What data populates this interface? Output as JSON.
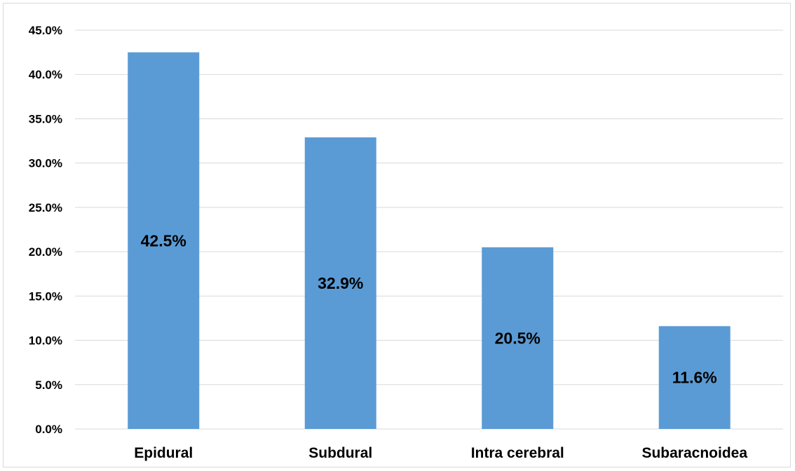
{
  "chart_data": {
    "type": "bar",
    "categories": [
      "Epidural",
      "Subdural",
      "Intra cerebral",
      "Subaracnoidea"
    ],
    "values": [
      42.5,
      32.9,
      20.5,
      11.6
    ],
    "data_labels": [
      "42.5%",
      "32.9%",
      "20.5%",
      "11.6%"
    ],
    "yticks": [
      "0.0%",
      "5.0%",
      "10.0%",
      "15.0%",
      "20.0%",
      "25.0%",
      "30.0%",
      "35.0%",
      "40.0%",
      "45.0%"
    ],
    "ylim": [
      0,
      45
    ],
    "title": "",
    "xlabel": "",
    "ylabel": "",
    "grid": true,
    "bar_color": "#5b9bd5",
    "grid_color": "#d9d9d9"
  }
}
